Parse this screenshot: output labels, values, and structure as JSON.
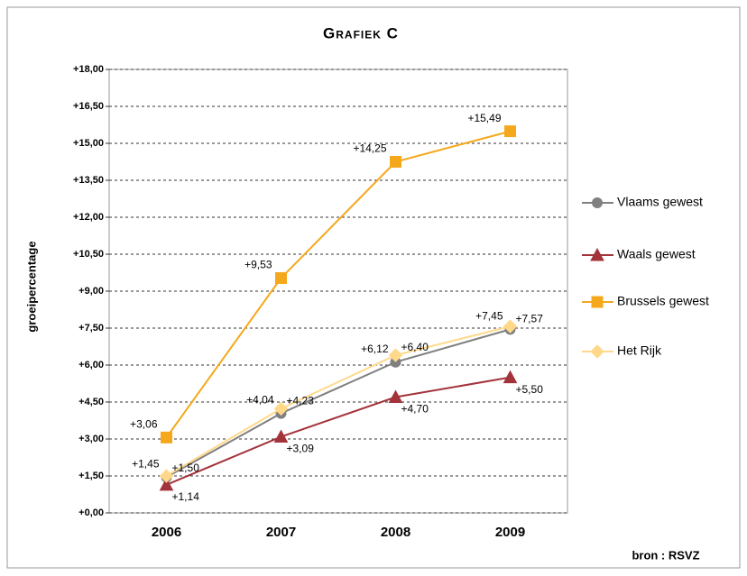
{
  "chart_data": {
    "type": "line",
    "title": "Grafiek C",
    "y_label": "groeipercentage",
    "source": "bron : RSVZ",
    "categories": [
      "2006",
      "2007",
      "2008",
      "2009"
    ],
    "ylim": [
      0,
      18
    ],
    "yticks": [
      {
        "value": 0,
        "label": "+0,00"
      },
      {
        "value": 1.5,
        "label": "+1,50"
      },
      {
        "value": 3,
        "label": "+3,00"
      },
      {
        "value": 4.5,
        "label": "+4,50"
      },
      {
        "value": 6,
        "label": "+6,00"
      },
      {
        "value": 7.5,
        "label": "+7,50"
      },
      {
        "value": 9,
        "label": "+9,00"
      },
      {
        "value": 10.5,
        "label": "+10,50"
      },
      {
        "value": 12,
        "label": "+12,00"
      },
      {
        "value": 13.5,
        "label": "+13,50"
      },
      {
        "value": 15,
        "label": "+15,00"
      },
      {
        "value": 16.5,
        "label": "+16,50"
      },
      {
        "value": 18,
        "label": "+18,00"
      }
    ],
    "grid": true,
    "legend": "right",
    "series": [
      {
        "name": "Vlaams gewest",
        "color": "#808080",
        "marker": "circle",
        "values": [
          1.45,
          4.04,
          6.12,
          7.45
        ],
        "value_labels": [
          "+1,45",
          "+4,04",
          "+6,12",
          "+7,45"
        ]
      },
      {
        "name": "Waals gewest",
        "color": "#a3333a",
        "marker": "triangle",
        "values": [
          1.14,
          3.09,
          4.7,
          5.5
        ],
        "value_labels": [
          "+1,14",
          "+3,09",
          "+4,70",
          "+5,50"
        ]
      },
      {
        "name": "Brussels gewest",
        "color": "#f5a81c",
        "marker": "square",
        "values": [
          3.06,
          9.53,
          14.25,
          15.49
        ],
        "value_labels": [
          "+3,06",
          "+9,53",
          "+14,25",
          "+15,49"
        ]
      },
      {
        "name": "Het Rijk",
        "color": "#ffd98a",
        "marker": "diamond",
        "values": [
          1.5,
          4.23,
          6.4,
          7.57
        ],
        "value_labels": [
          "+1,50",
          "+4,23",
          "+6,40",
          "+7,57"
        ]
      }
    ]
  }
}
